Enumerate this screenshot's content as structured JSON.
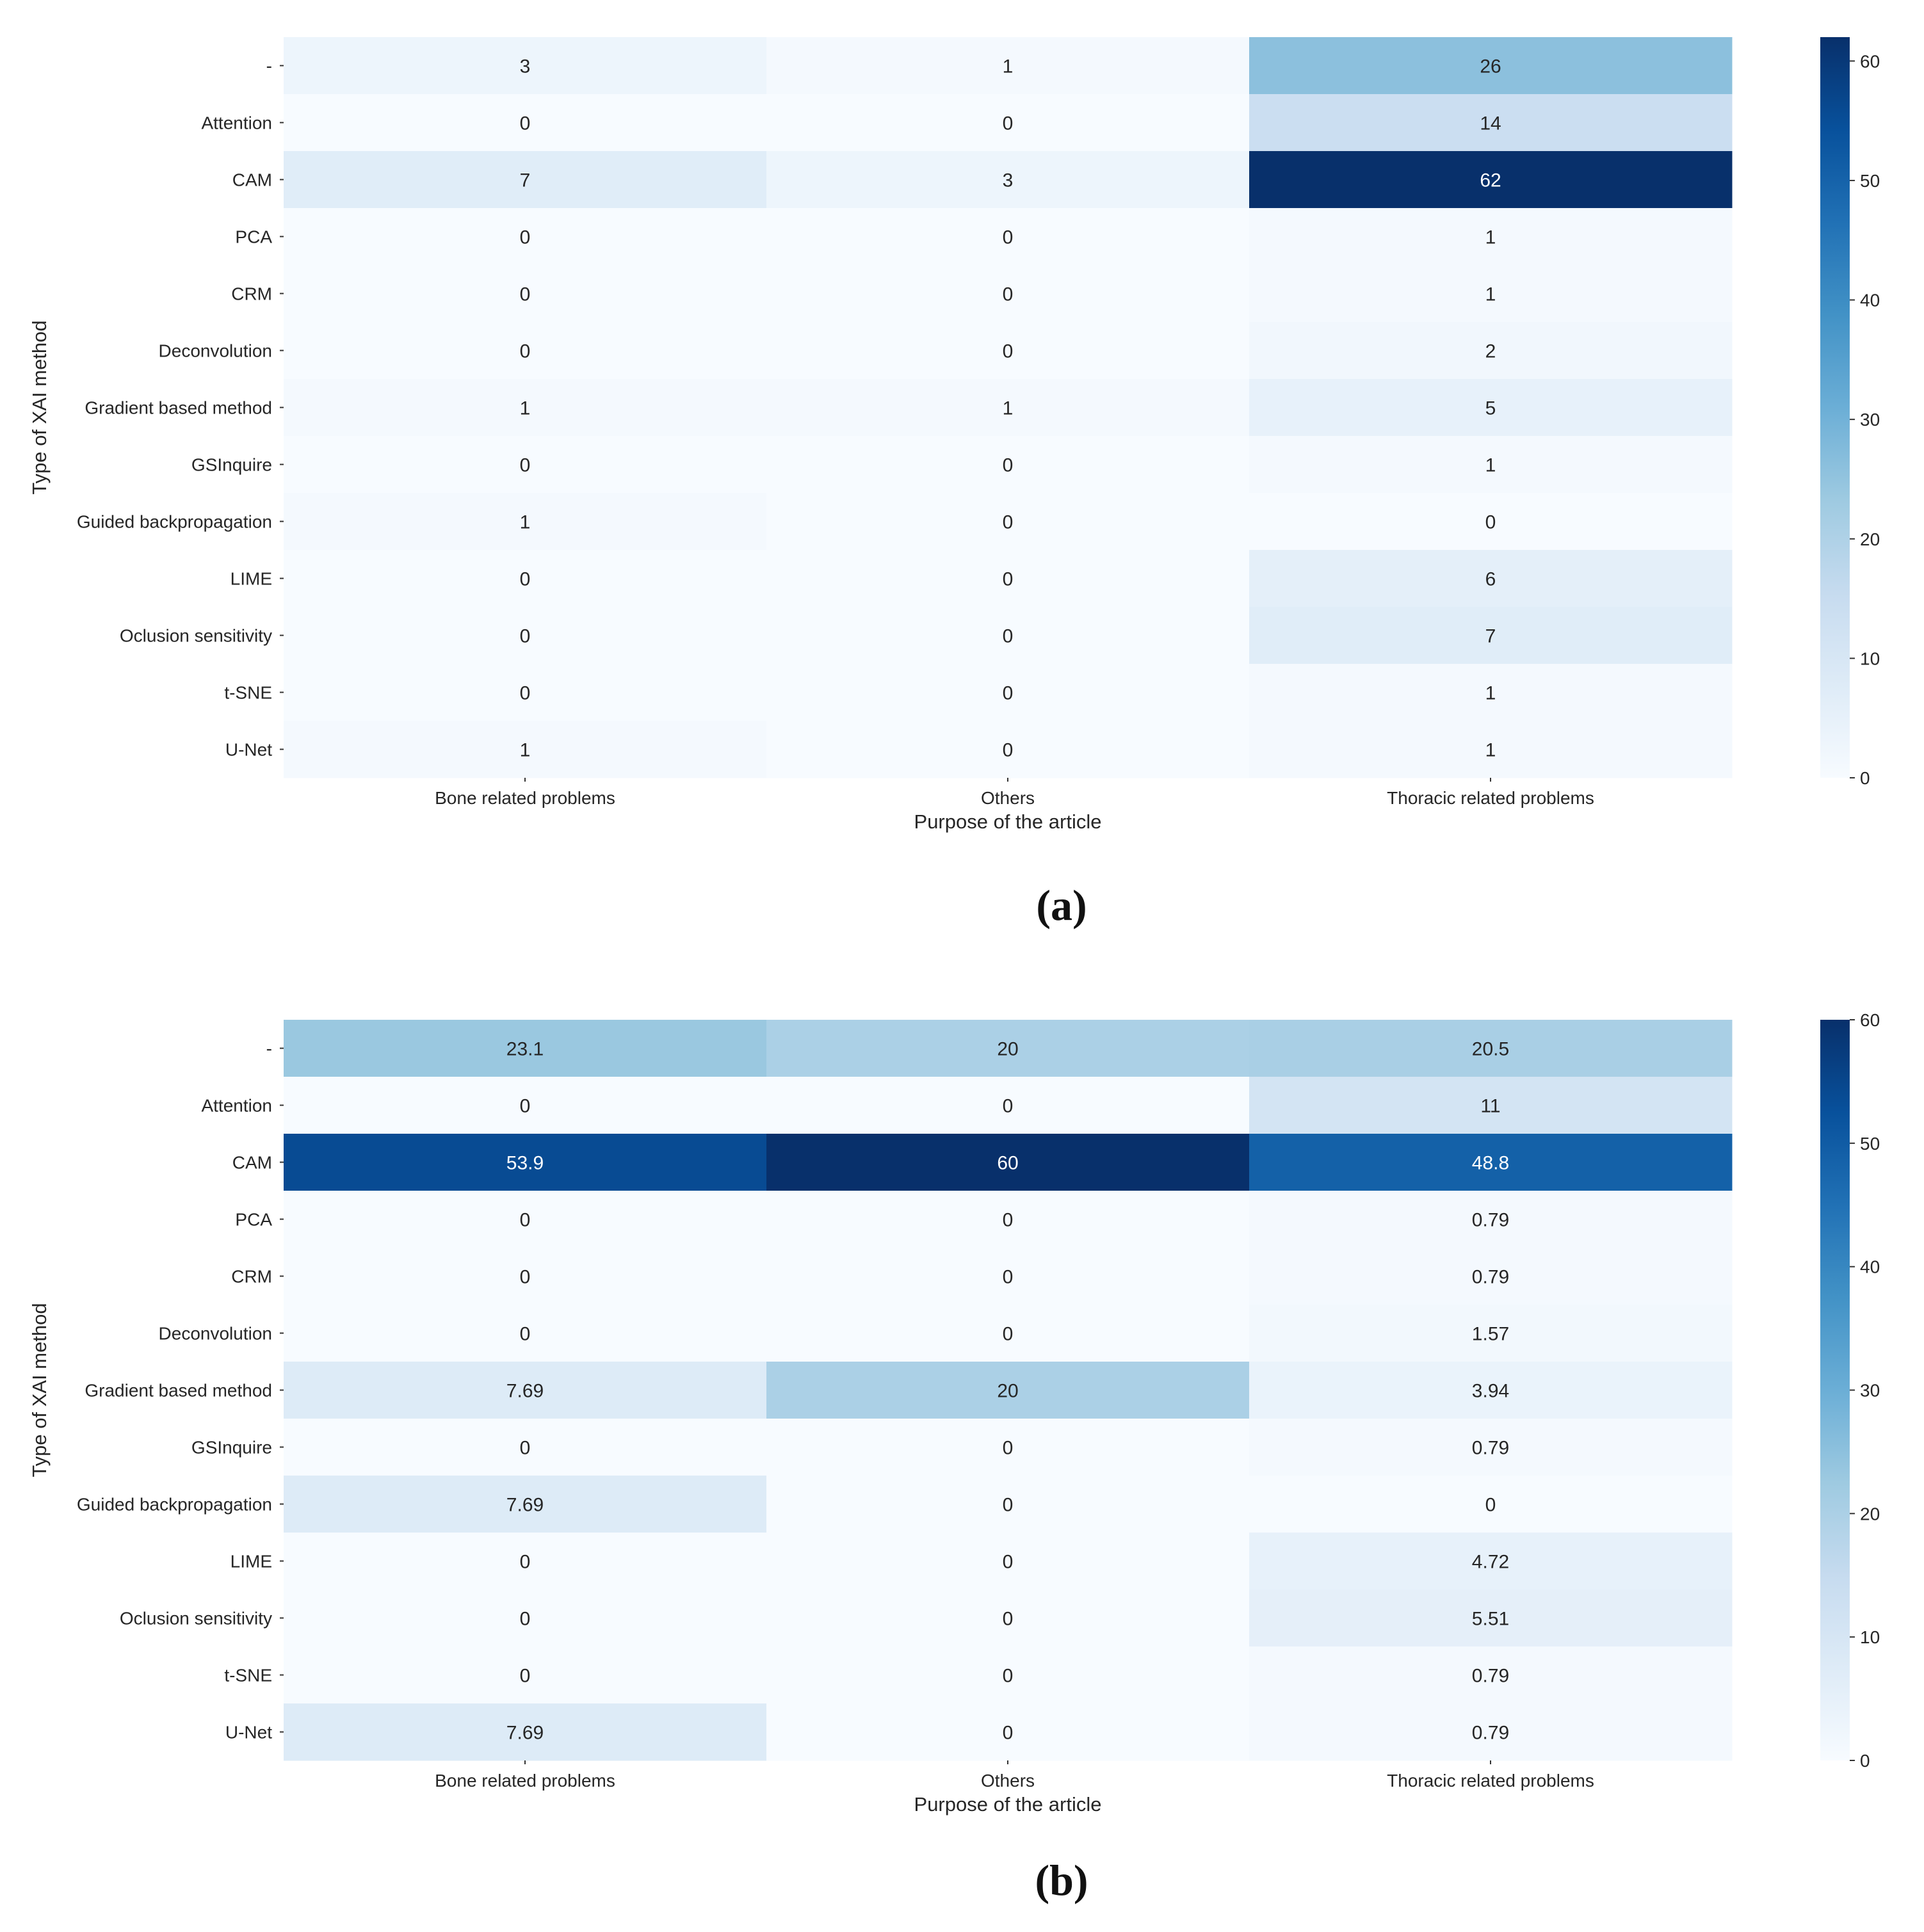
{
  "chart_data": [
    {
      "type": "heatmap",
      "panel_label": "(a)",
      "xlabel": "Purpose of the article",
      "ylabel": "Type of XAI method",
      "columns": [
        "Bone related problems",
        "Others",
        "Thoracic related problems"
      ],
      "rows": [
        "-",
        "Attention",
        "CAM",
        "PCA",
        "CRM",
        "Deconvolution",
        "Gradient based method",
        "GSInquire",
        "Guided backpropagation",
        "LIME",
        "Oclusion sensitivity",
        "t-SNE",
        "U-Net"
      ],
      "values": [
        [
          3,
          1,
          26
        ],
        [
          0,
          0,
          14
        ],
        [
          7,
          3,
          62
        ],
        [
          0,
          0,
          1
        ],
        [
          0,
          0,
          1
        ],
        [
          0,
          0,
          2
        ],
        [
          1,
          1,
          5
        ],
        [
          0,
          0,
          1
        ],
        [
          1,
          0,
          0
        ],
        [
          0,
          0,
          6
        ],
        [
          0,
          0,
          7
        ],
        [
          0,
          0,
          1
        ],
        [
          1,
          0,
          1
        ]
      ],
      "value_labels": [
        [
          "3",
          "1",
          "26"
        ],
        [
          "0",
          "0",
          "14"
        ],
        [
          "7",
          "3",
          "62"
        ],
        [
          "0",
          "0",
          "1"
        ],
        [
          "0",
          "0",
          "1"
        ],
        [
          "0",
          "0",
          "2"
        ],
        [
          "1",
          "1",
          "5"
        ],
        [
          "0",
          "0",
          "1"
        ],
        [
          "1",
          "0",
          "0"
        ],
        [
          "0",
          "0",
          "6"
        ],
        [
          "0",
          "0",
          "7"
        ],
        [
          "0",
          "0",
          "1"
        ],
        [
          "1",
          "0",
          "1"
        ]
      ],
      "colorbar": {
        "range": [
          0,
          62
        ],
        "ticks": [
          0,
          10,
          20,
          30,
          40,
          50,
          60
        ],
        "tick_labels": [
          "0",
          "10",
          "20",
          "30",
          "40",
          "50",
          "60"
        ],
        "colormap": "Blues"
      }
    },
    {
      "type": "heatmap",
      "panel_label": "(b)",
      "xlabel": "Purpose of the article",
      "ylabel": "Type of XAI method",
      "columns": [
        "Bone related problems",
        "Others",
        "Thoracic related problems"
      ],
      "rows": [
        "-",
        "Attention",
        "CAM",
        "PCA",
        "CRM",
        "Deconvolution",
        "Gradient based method",
        "GSInquire",
        "Guided backpropagation",
        "LIME",
        "Oclusion sensitivity",
        "t-SNE",
        "U-Net"
      ],
      "values": [
        [
          23.1,
          20,
          20.5
        ],
        [
          0,
          0,
          11
        ],
        [
          53.9,
          60,
          48.8
        ],
        [
          0,
          0,
          0.79
        ],
        [
          0,
          0,
          0.79
        ],
        [
          0,
          0,
          1.57
        ],
        [
          7.69,
          20,
          3.94
        ],
        [
          0,
          0,
          0.79
        ],
        [
          7.69,
          0,
          0
        ],
        [
          0,
          0,
          4.72
        ],
        [
          0,
          0,
          5.51
        ],
        [
          0,
          0,
          0.79
        ],
        [
          7.69,
          0,
          0.79
        ]
      ],
      "value_labels": [
        [
          "23.1",
          "20",
          "20.5"
        ],
        [
          "0",
          "0",
          "11"
        ],
        [
          "53.9",
          "60",
          "48.8"
        ],
        [
          "0",
          "0",
          "0.79"
        ],
        [
          "0",
          "0",
          "0.79"
        ],
        [
          "0",
          "0",
          "1.57"
        ],
        [
          "7.69",
          "20",
          "3.94"
        ],
        [
          "0",
          "0",
          "0.79"
        ],
        [
          "7.69",
          "0",
          "0"
        ],
        [
          "0",
          "0",
          "4.72"
        ],
        [
          "0",
          "0",
          "5.51"
        ],
        [
          "0",
          "0",
          "0.79"
        ],
        [
          "7.69",
          "0",
          "0.79"
        ]
      ],
      "colorbar": {
        "range": [
          0,
          60
        ],
        "ticks": [
          0,
          10,
          20,
          30,
          40,
          50,
          60
        ],
        "tick_labels": [
          "0",
          "10",
          "20",
          "30",
          "40",
          "50",
          "60"
        ],
        "colormap": "Blues"
      }
    }
  ]
}
